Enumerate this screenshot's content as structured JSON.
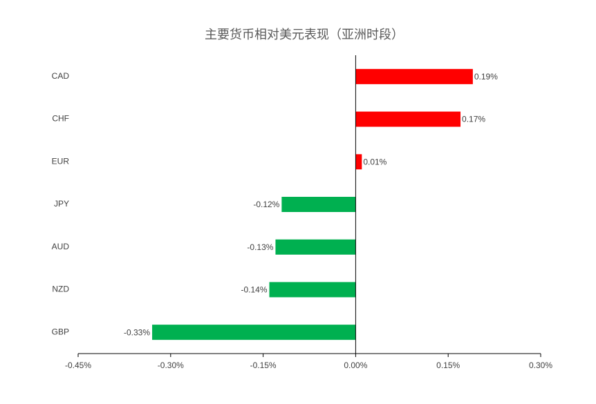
{
  "chart_data": {
    "type": "bar",
    "orientation": "horizontal",
    "title": "主要货币相对美元表现（亚洲时段）",
    "categories": [
      "CAD",
      "CHF",
      "EUR",
      "JPY",
      "AUD",
      "NZD",
      "GBP"
    ],
    "values": [
      0.19,
      0.17,
      0.01,
      -0.12,
      -0.13,
      -0.14,
      -0.33
    ],
    "value_labels": [
      "0.19%",
      "0.17%",
      "0.01%",
      "-0.12%",
      "-0.13%",
      "-0.14%",
      "-0.33%"
    ],
    "positive_color": "#ff0000",
    "negative_color": "#00b050",
    "xlim": [
      -0.45,
      0.3
    ],
    "xticks": [
      {
        "value": -0.45,
        "label": "-0.45%"
      },
      {
        "value": -0.3,
        "label": "-0.30%"
      },
      {
        "value": -0.15,
        "label": "-0.15%"
      },
      {
        "value": 0,
        "label": "0.00%"
      },
      {
        "value": 0.15,
        "label": "0.15%"
      },
      {
        "value": 0.3,
        "label": "0.30%"
      }
    ],
    "grid": false
  }
}
